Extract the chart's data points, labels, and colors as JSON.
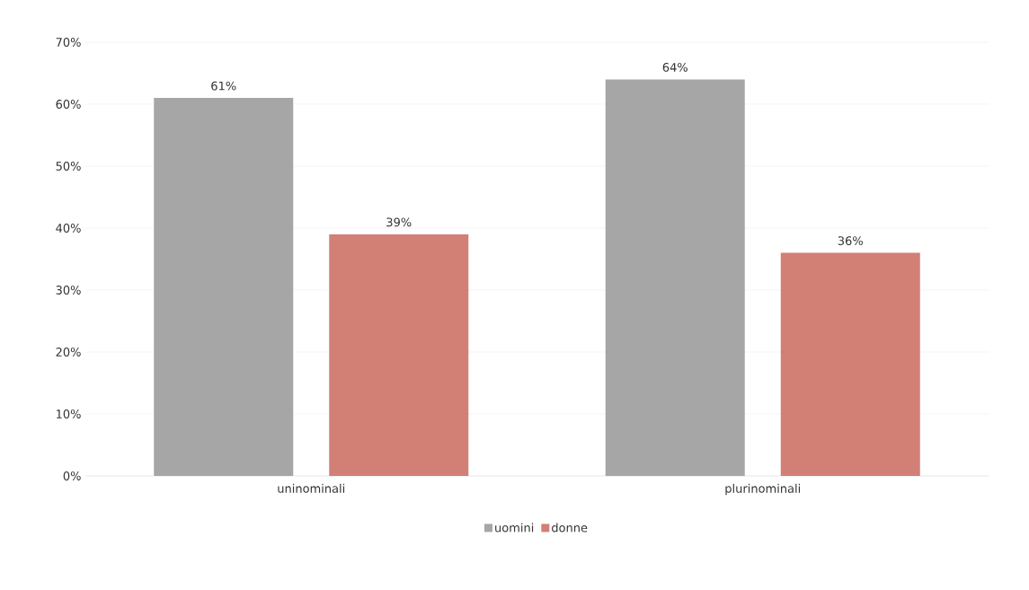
{
  "chart_data": {
    "type": "bar",
    "categories": [
      "uninominali",
      "plurinominali"
    ],
    "series": [
      {
        "name": "uomini",
        "color": "#a6a6a6",
        "values": [
          61,
          64
        ],
        "value_labels": [
          "61%",
          "64%"
        ]
      },
      {
        "name": "donne",
        "color": "#d27f76",
        "values": [
          39,
          36
        ],
        "value_labels": [
          "39%",
          "36%"
        ]
      }
    ],
    "ylim": [
      0,
      70
    ],
    "yticks": [
      {
        "value": 0,
        "label": "0%"
      },
      {
        "value": 10,
        "label": "10%"
      },
      {
        "value": 20,
        "label": "20%"
      },
      {
        "value": 30,
        "label": "30%"
      },
      {
        "value": 40,
        "label": "40%"
      },
      {
        "value": 50,
        "label": "50%"
      },
      {
        "value": 60,
        "label": "60%"
      },
      {
        "value": 70,
        "label": "70%"
      }
    ],
    "grid": "y",
    "legend": "bottom"
  }
}
